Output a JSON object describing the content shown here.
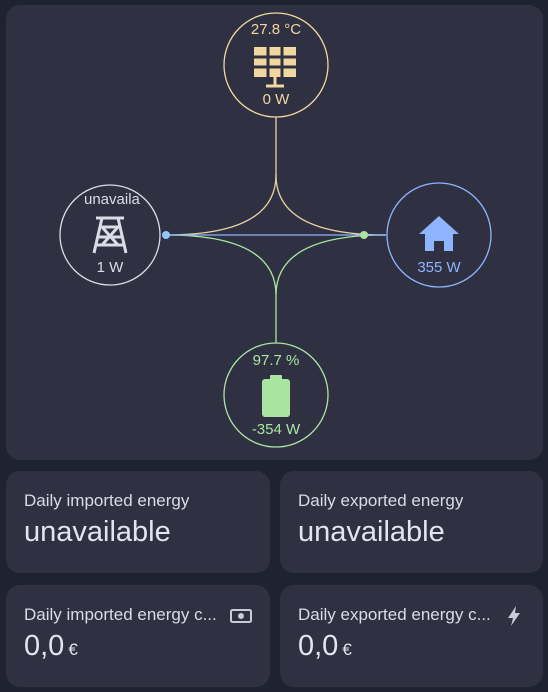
{
  "flow": {
    "solar": {
      "temperature": "27.8 °C",
      "power": "0 W",
      "icon": "solar-panel-icon",
      "color": "#f0d8a0"
    },
    "grid": {
      "status": "unavailable",
      "power": "1 W",
      "icon": "transmission-tower-icon",
      "color": "#dadce6"
    },
    "home": {
      "power": "355 W",
      "icon": "home-icon",
      "color": "#8eb4ff"
    },
    "battery": {
      "level": "97.7 %",
      "power": "-354 W",
      "icon": "battery-icon",
      "color": "#a9e5a0"
    }
  },
  "tiles": [
    {
      "label": "Daily imported energy",
      "value": "unavailable",
      "unit": ""
    },
    {
      "label": "Daily exported energy",
      "value": "unavailable",
      "unit": ""
    },
    {
      "label": "Daily imported energy c...",
      "value": "0,0",
      "unit": "€",
      "icon": "cash-icon"
    },
    {
      "label": "Daily exported energy c...",
      "value": "0,0",
      "unit": "€",
      "icon": "flash-icon"
    }
  ]
}
